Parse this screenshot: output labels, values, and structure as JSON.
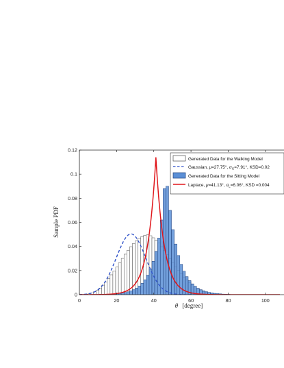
{
  "chart_data": {
    "type": "bar",
    "title": "",
    "xlabel_symbol": "θ",
    "xlabel_unit": "[degree]",
    "ylabel": "Sample PDF",
    "xlim": [
      0,
      110
    ],
    "ylim": [
      0,
      0.12
    ],
    "bin_width": 1.5,
    "x_ticks": [
      0,
      20,
      40,
      60,
      80,
      100
    ],
    "x_tick_labels": [
      "0",
      "20",
      "40",
      "60",
      "80",
      "100"
    ],
    "y_ticks": [
      0,
      0.02,
      0.04,
      0.06,
      0.08,
      0.1,
      0.12
    ],
    "y_tick_labels": [
      "0",
      "0.02",
      "0.04",
      "0.06",
      "0.08",
      "0.1",
      "0.12"
    ],
    "grid": false,
    "legend_position": "top-right",
    "legend": {
      "walking_hist": "Generated Data for the Walking Model",
      "gaussian": {
        "prefix": "Gaussian, ",
        "mu_sym": "μ",
        "mu_text": "=27.75°, ",
        "sigma_sym": "σ",
        "sigma_sub": "G",
        "sigma_text": "=7.91°, KSD=0.02"
      },
      "sitting_hist": "Generated Data for the Sitting Model",
      "laplace": {
        "prefix": "Laplace, ",
        "mu_sym": "μ",
        "mu_text": "=41.13°, ",
        "sigma_sym": "σ",
        "sigma_sub": "L",
        "sigma_text": "=6.06°, KSD =0.004"
      }
    },
    "colors": {
      "walking_bar_fill": "#ffffff",
      "walking_bar_edge": "#4d4d4d",
      "sitting_bar_fill": "#5b8fd6",
      "sitting_bar_edge": "#1f3f7a",
      "gaussian_line": "#2f52c9",
      "laplace_line": "#e0161b",
      "axis": "#262626"
    },
    "series": [
      {
        "name": "Generated Data for the Walking Model",
        "kind": "histogram",
        "x_start": 1.5,
        "values": [
          0.0002,
          0.0004,
          0.0007,
          0.0013,
          0.0024,
          0.0037,
          0.0055,
          0.0079,
          0.0104,
          0.0133,
          0.0165,
          0.0196,
          0.0229,
          0.0265,
          0.0301,
          0.0336,
          0.0368,
          0.0398,
          0.0425,
          0.0448,
          0.0467,
          0.0482,
          0.0492,
          0.0497,
          0.0489,
          0.0472,
          0.0452,
          0.0428,
          0.0398,
          0.0365,
          0.0332,
          0.0298,
          0.0265,
          0.0232,
          0.0202,
          0.0173,
          0.0146,
          0.0122,
          0.01,
          0.0081,
          0.0064,
          0.0049,
          0.0037,
          0.0027,
          0.0019,
          0.0013,
          0.0009,
          0.0005,
          0.0003
        ]
      },
      {
        "name": "Generated Data for the Sitting Model",
        "kind": "histogram",
        "x_start": 12.0,
        "values": [
          0.0001,
          0.0002,
          0.0003,
          0.0004,
          0.0006,
          0.0008,
          0.001,
          0.0014,
          0.0018,
          0.0024,
          0.0032,
          0.0042,
          0.0055,
          0.0072,
          0.0095,
          0.0124,
          0.0162,
          0.0213,
          0.0277,
          0.036,
          0.047,
          0.062,
          0.088,
          0.09,
          0.07,
          0.054,
          0.042,
          0.0325,
          0.0252,
          0.0195,
          0.015,
          0.0117,
          0.009,
          0.007,
          0.0054,
          0.0042,
          0.0032,
          0.0025,
          0.0019,
          0.0015,
          0.0011,
          0.0009,
          0.0007,
          0.0005,
          0.0004,
          0.0003
        ]
      },
      {
        "name": "Gaussian",
        "kind": "curve",
        "mu": 27.75,
        "sigma": 7.91,
        "x_range": [
          0,
          68
        ]
      },
      {
        "name": "Laplace",
        "kind": "curve",
        "mu": 41.13,
        "sigma": 6.06,
        "peak": 0.114,
        "x_range": [
          0,
          108
        ]
      }
    ]
  }
}
